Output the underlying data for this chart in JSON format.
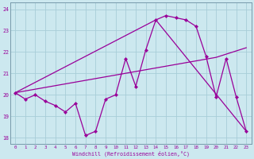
{
  "xlabel": "Windchill (Refroidissement éolien,°C)",
  "bg_color": "#cce8ef",
  "grid_color": "#a8cdd8",
  "line_color": "#990099",
  "spine_color": "#7799aa",
  "xlim": [
    -0.5,
    23.5
  ],
  "ylim": [
    17.7,
    24.3
  ],
  "xtick_vals": [
    0,
    1,
    2,
    3,
    4,
    5,
    6,
    7,
    8,
    9,
    10,
    11,
    12,
    13,
    14,
    15,
    16,
    17,
    18,
    19,
    20,
    21,
    22,
    23
  ],
  "ytick_vals": [
    18,
    19,
    20,
    21,
    22,
    23,
    24
  ],
  "line1_x": [
    0,
    1,
    2,
    3,
    4,
    5,
    6,
    7,
    8,
    9,
    10,
    11,
    12,
    13,
    14,
    15,
    16,
    17,
    18,
    19,
    20,
    21,
    22,
    23
  ],
  "line1_y": [
    20.1,
    19.8,
    20.0,
    19.7,
    19.5,
    19.2,
    19.6,
    18.1,
    18.3,
    19.8,
    20.0,
    21.7,
    20.4,
    22.1,
    23.5,
    23.7,
    23.6,
    23.5,
    23.2,
    21.8,
    19.9,
    21.7,
    19.9,
    18.3
  ],
  "line2_x": [
    0,
    14,
    23
  ],
  "line2_y": [
    20.1,
    23.5,
    18.3
  ],
  "line3_x": [
    0,
    20,
    23
  ],
  "line3_y": [
    20.1,
    21.75,
    22.2
  ]
}
